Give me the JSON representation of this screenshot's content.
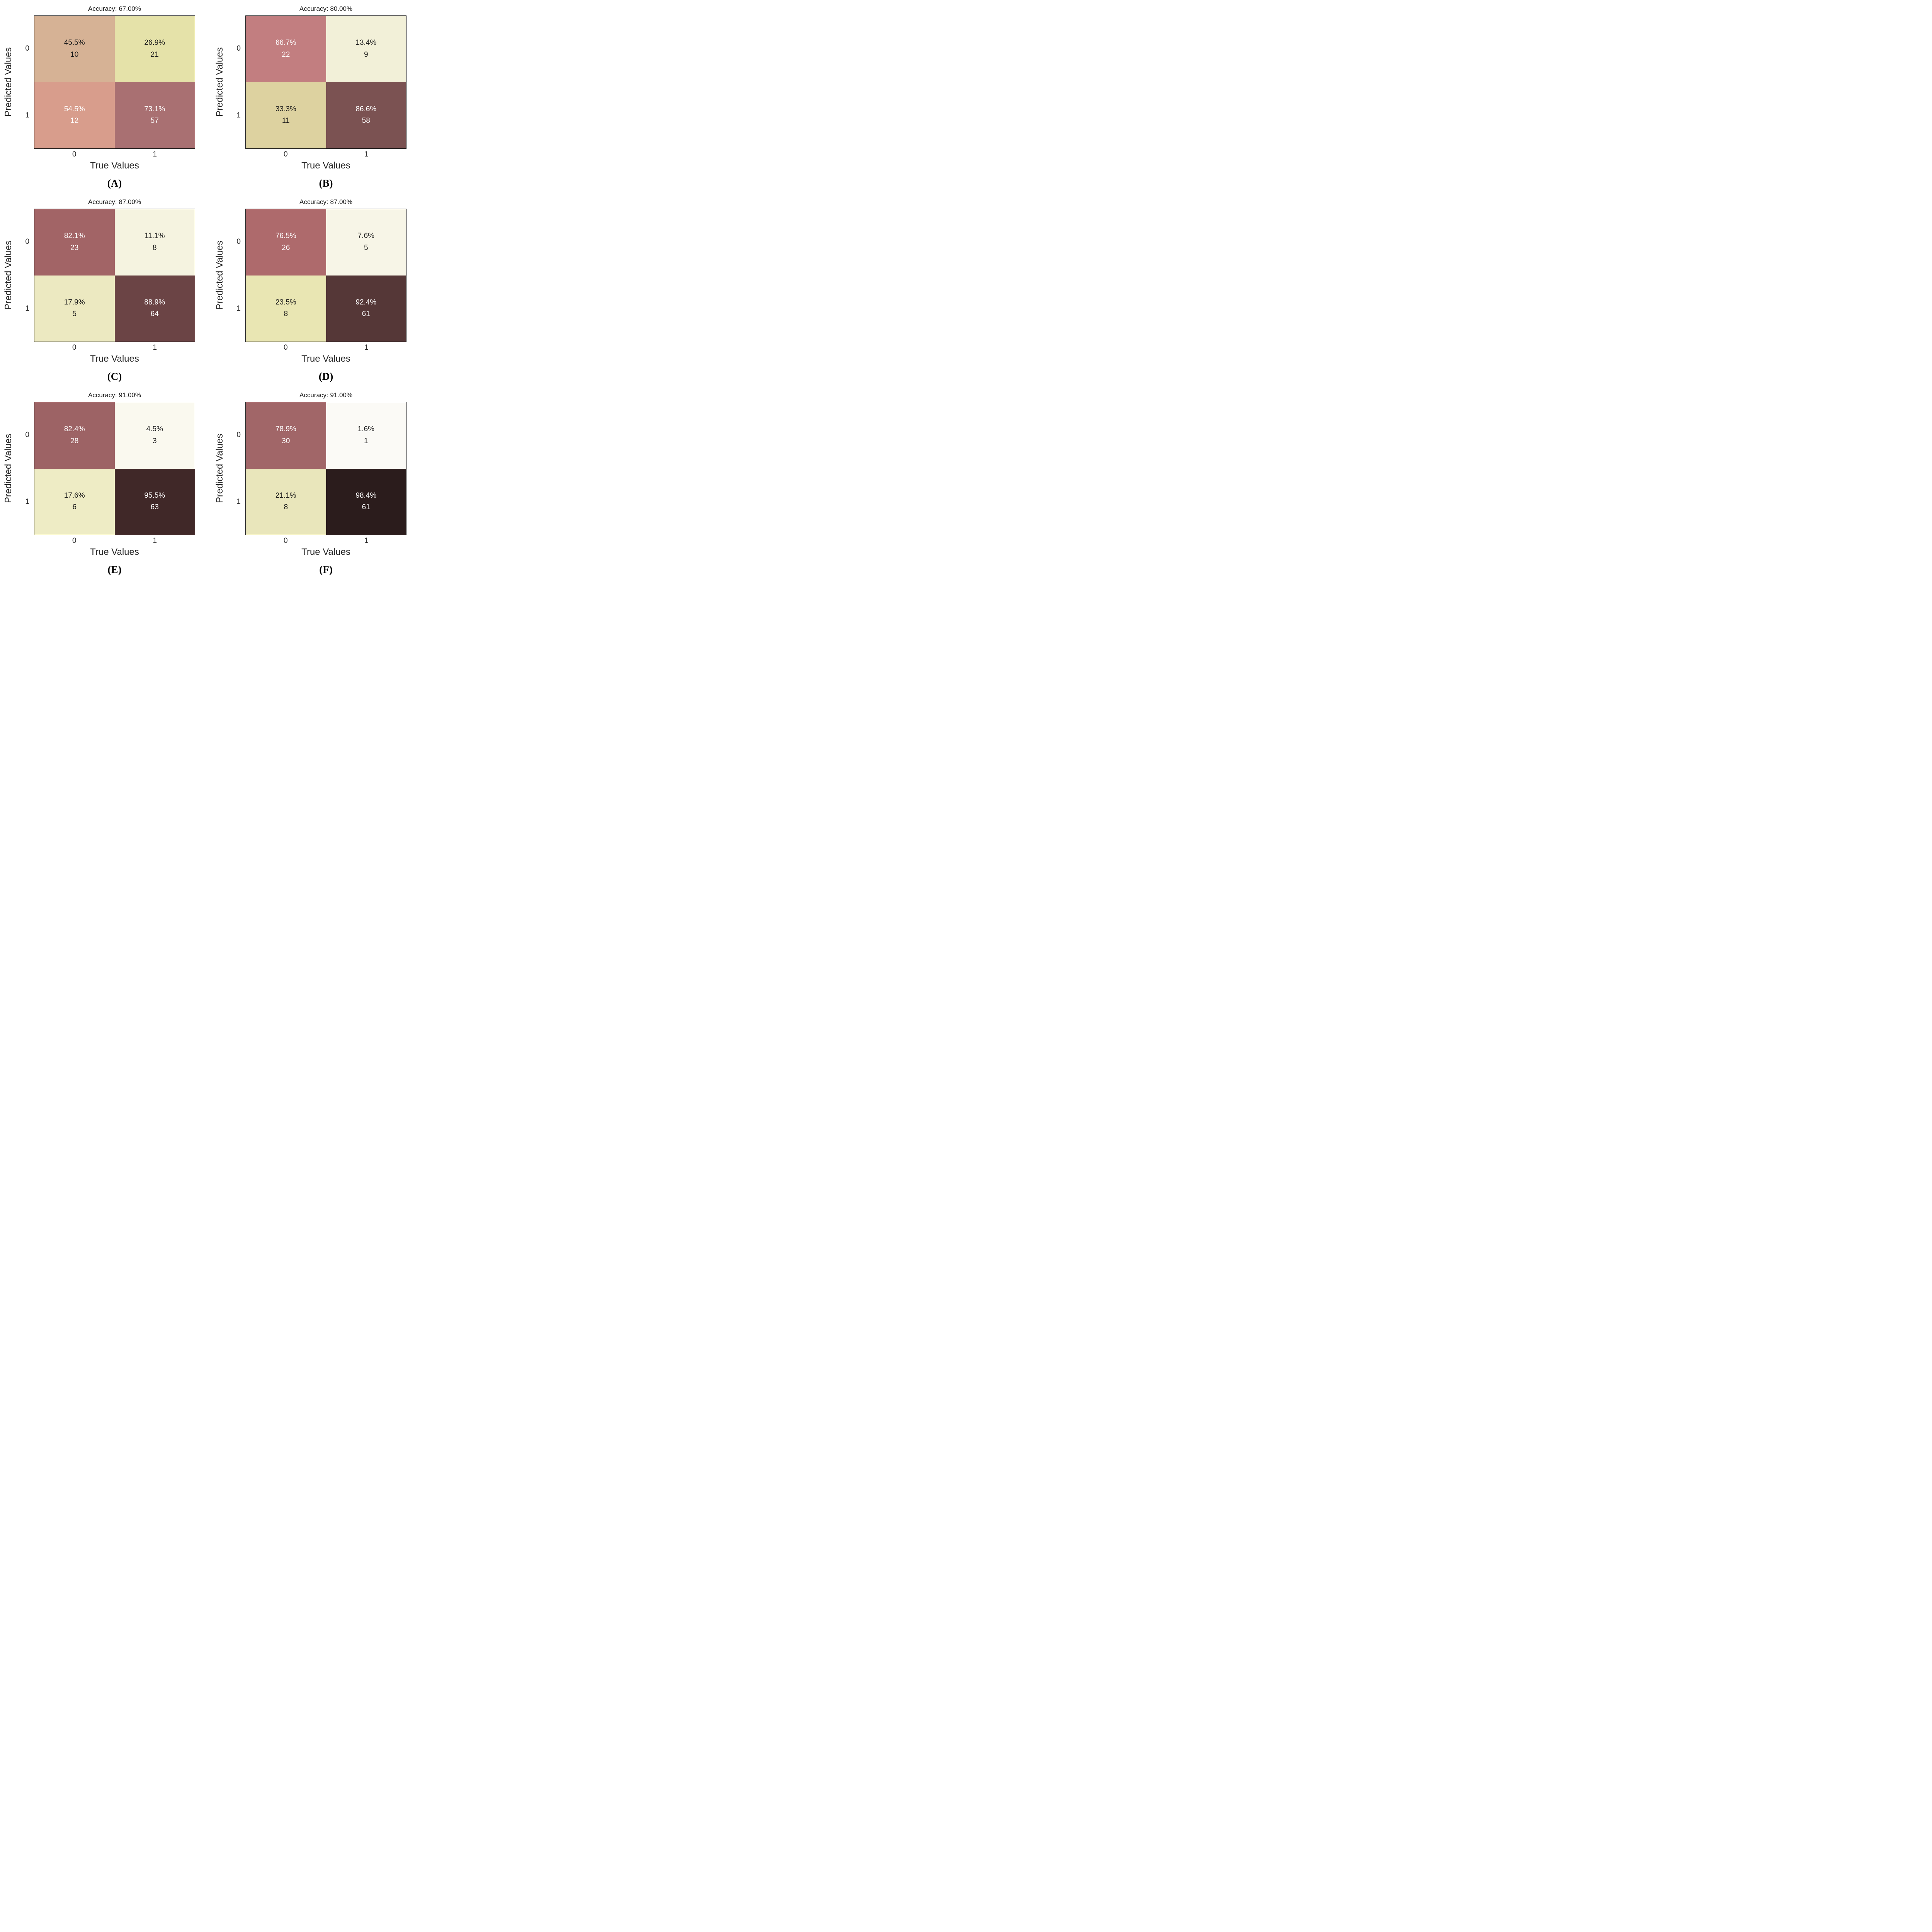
{
  "figure": {
    "xlabel": "True Values",
    "ylabel": "Predicted Values",
    "xticks": [
      "0",
      "1"
    ],
    "yticks": [
      "0",
      "1"
    ],
    "background": "#ffffff",
    "axis_text_color": "#262626"
  },
  "chart_data": [
    {
      "type": "heatmap",
      "label": "(A)",
      "title": "Accuracy: 67.00%",
      "accuracy_percent": 67.0,
      "xlabel": "True Values",
      "ylabel": "Predicted Values",
      "x": [
        "0",
        "1"
      ],
      "y": [
        "0",
        "1"
      ],
      "percent_matrix": [
        [
          45.5,
          26.9
        ],
        [
          54.5,
          73.1
        ]
      ],
      "count_matrix": [
        [
          10,
          21
        ],
        [
          12,
          57
        ]
      ],
      "cells": [
        {
          "pct": "45.5%",
          "count": 10,
          "bg": "#d6b295",
          "fg": "#1a1a1a"
        },
        {
          "pct": "26.9%",
          "count": 21,
          "bg": "#e5e2a9",
          "fg": "#1a1a1a"
        },
        {
          "pct": "54.5%",
          "count": 12,
          "bg": "#d89d8c",
          "fg": "#ffffff"
        },
        {
          "pct": "73.1%",
          "count": 57,
          "bg": "#a97072",
          "fg": "#ffffff"
        }
      ]
    },
    {
      "type": "heatmap",
      "label": "(B)",
      "title": "Accuracy: 80.00%",
      "accuracy_percent": 80.0,
      "xlabel": "True Values",
      "ylabel": "Predicted Values",
      "x": [
        "0",
        "1"
      ],
      "y": [
        "0",
        "1"
      ],
      "percent_matrix": [
        [
          66.7,
          13.4
        ],
        [
          33.3,
          86.6
        ]
      ],
      "count_matrix": [
        [
          22,
          9
        ],
        [
          11,
          58
        ]
      ],
      "cells": [
        {
          "pct": "66.7%",
          "count": 22,
          "bg": "#c27e80",
          "fg": "#ffffff"
        },
        {
          "pct": "13.4%",
          "count": 9,
          "bg": "#f2f0d8",
          "fg": "#1a1a1a"
        },
        {
          "pct": "33.3%",
          "count": 11,
          "bg": "#ddd2a0",
          "fg": "#1a1a1a"
        },
        {
          "pct": "86.6%",
          "count": 58,
          "bg": "#7b5252",
          "fg": "#ffffff"
        }
      ]
    },
    {
      "type": "heatmap",
      "label": "(C)",
      "title": "Accuracy: 87.00%",
      "accuracy_percent": 87.0,
      "xlabel": "True Values",
      "ylabel": "Predicted Values",
      "x": [
        "0",
        "1"
      ],
      "y": [
        "0",
        "1"
      ],
      "percent_matrix": [
        [
          82.1,
          11.1
        ],
        [
          17.9,
          88.9
        ]
      ],
      "count_matrix": [
        [
          23,
          8
        ],
        [
          5,
          64
        ]
      ],
      "cells": [
        {
          "pct": "82.1%",
          "count": 23,
          "bg": "#a26466",
          "fg": "#ffffff"
        },
        {
          "pct": "11.1%",
          "count": 8,
          "bg": "#f5f3e0",
          "fg": "#1a1a1a"
        },
        {
          "pct": "17.9%",
          "count": 5,
          "bg": "#ece9c1",
          "fg": "#1a1a1a"
        },
        {
          "pct": "88.9%",
          "count": 64,
          "bg": "#6b4445",
          "fg": "#ffffff"
        }
      ]
    },
    {
      "type": "heatmap",
      "label": "(D)",
      "title": "Accuracy: 87.00%",
      "accuracy_percent": 87.0,
      "xlabel": "True Values",
      "ylabel": "Predicted Values",
      "x": [
        "0",
        "1"
      ],
      "y": [
        "0",
        "1"
      ],
      "percent_matrix": [
        [
          76.5,
          7.6
        ],
        [
          23.5,
          92.4
        ]
      ],
      "count_matrix": [
        [
          26,
          5
        ],
        [
          8,
          61
        ]
      ],
      "cells": [
        {
          "pct": "76.5%",
          "count": 26,
          "bg": "#ae6a6c",
          "fg": "#ffffff"
        },
        {
          "pct": "7.6%",
          "count": 5,
          "bg": "#f7f5e7",
          "fg": "#1a1a1a"
        },
        {
          "pct": "23.5%",
          "count": 8,
          "bg": "#e9e6b3",
          "fg": "#1a1a1a"
        },
        {
          "pct": "92.4%",
          "count": 61,
          "bg": "#553737",
          "fg": "#ffffff"
        }
      ]
    },
    {
      "type": "heatmap",
      "label": "(E)",
      "title": "Accuracy: 91.00%",
      "accuracy_percent": 91.0,
      "xlabel": "True Values",
      "ylabel": "Predicted Values",
      "x": [
        "0",
        "1"
      ],
      "y": [
        "0",
        "1"
      ],
      "percent_matrix": [
        [
          82.4,
          4.5
        ],
        [
          17.6,
          95.5
        ]
      ],
      "count_matrix": [
        [
          28,
          3
        ],
        [
          6,
          63
        ]
      ],
      "cells": [
        {
          "pct": "82.4%",
          "count": 28,
          "bg": "#9d6365",
          "fg": "#ffffff"
        },
        {
          "pct": "4.5%",
          "count": 3,
          "bg": "#faf9ef",
          "fg": "#1a1a1a"
        },
        {
          "pct": "17.6%",
          "count": 6,
          "bg": "#eeecc5",
          "fg": "#1a1a1a"
        },
        {
          "pct": "95.5%",
          "count": 63,
          "bg": "#402828",
          "fg": "#ffffff"
        }
      ]
    },
    {
      "type": "heatmap",
      "label": "(F)",
      "title": "Accuracy: 91.00%",
      "accuracy_percent": 91.0,
      "xlabel": "True Values",
      "ylabel": "Predicted Values",
      "x": [
        "0",
        "1"
      ],
      "y": [
        "0",
        "1"
      ],
      "percent_matrix": [
        [
          78.9,
          1.6
        ],
        [
          21.1,
          98.4
        ]
      ],
      "count_matrix": [
        [
          30,
          1
        ],
        [
          8,
          61
        ]
      ],
      "cells": [
        {
          "pct": "78.9%",
          "count": 30,
          "bg": "#a16668",
          "fg": "#ffffff"
        },
        {
          "pct": "1.6%",
          "count": 1,
          "bg": "#fbfaf6",
          "fg": "#1a1a1a"
        },
        {
          "pct": "21.1%",
          "count": 8,
          "bg": "#e9e6bb",
          "fg": "#1a1a1a"
        },
        {
          "pct": "98.4%",
          "count": 61,
          "bg": "#2b1c1c",
          "fg": "#ffffff"
        }
      ]
    }
  ]
}
